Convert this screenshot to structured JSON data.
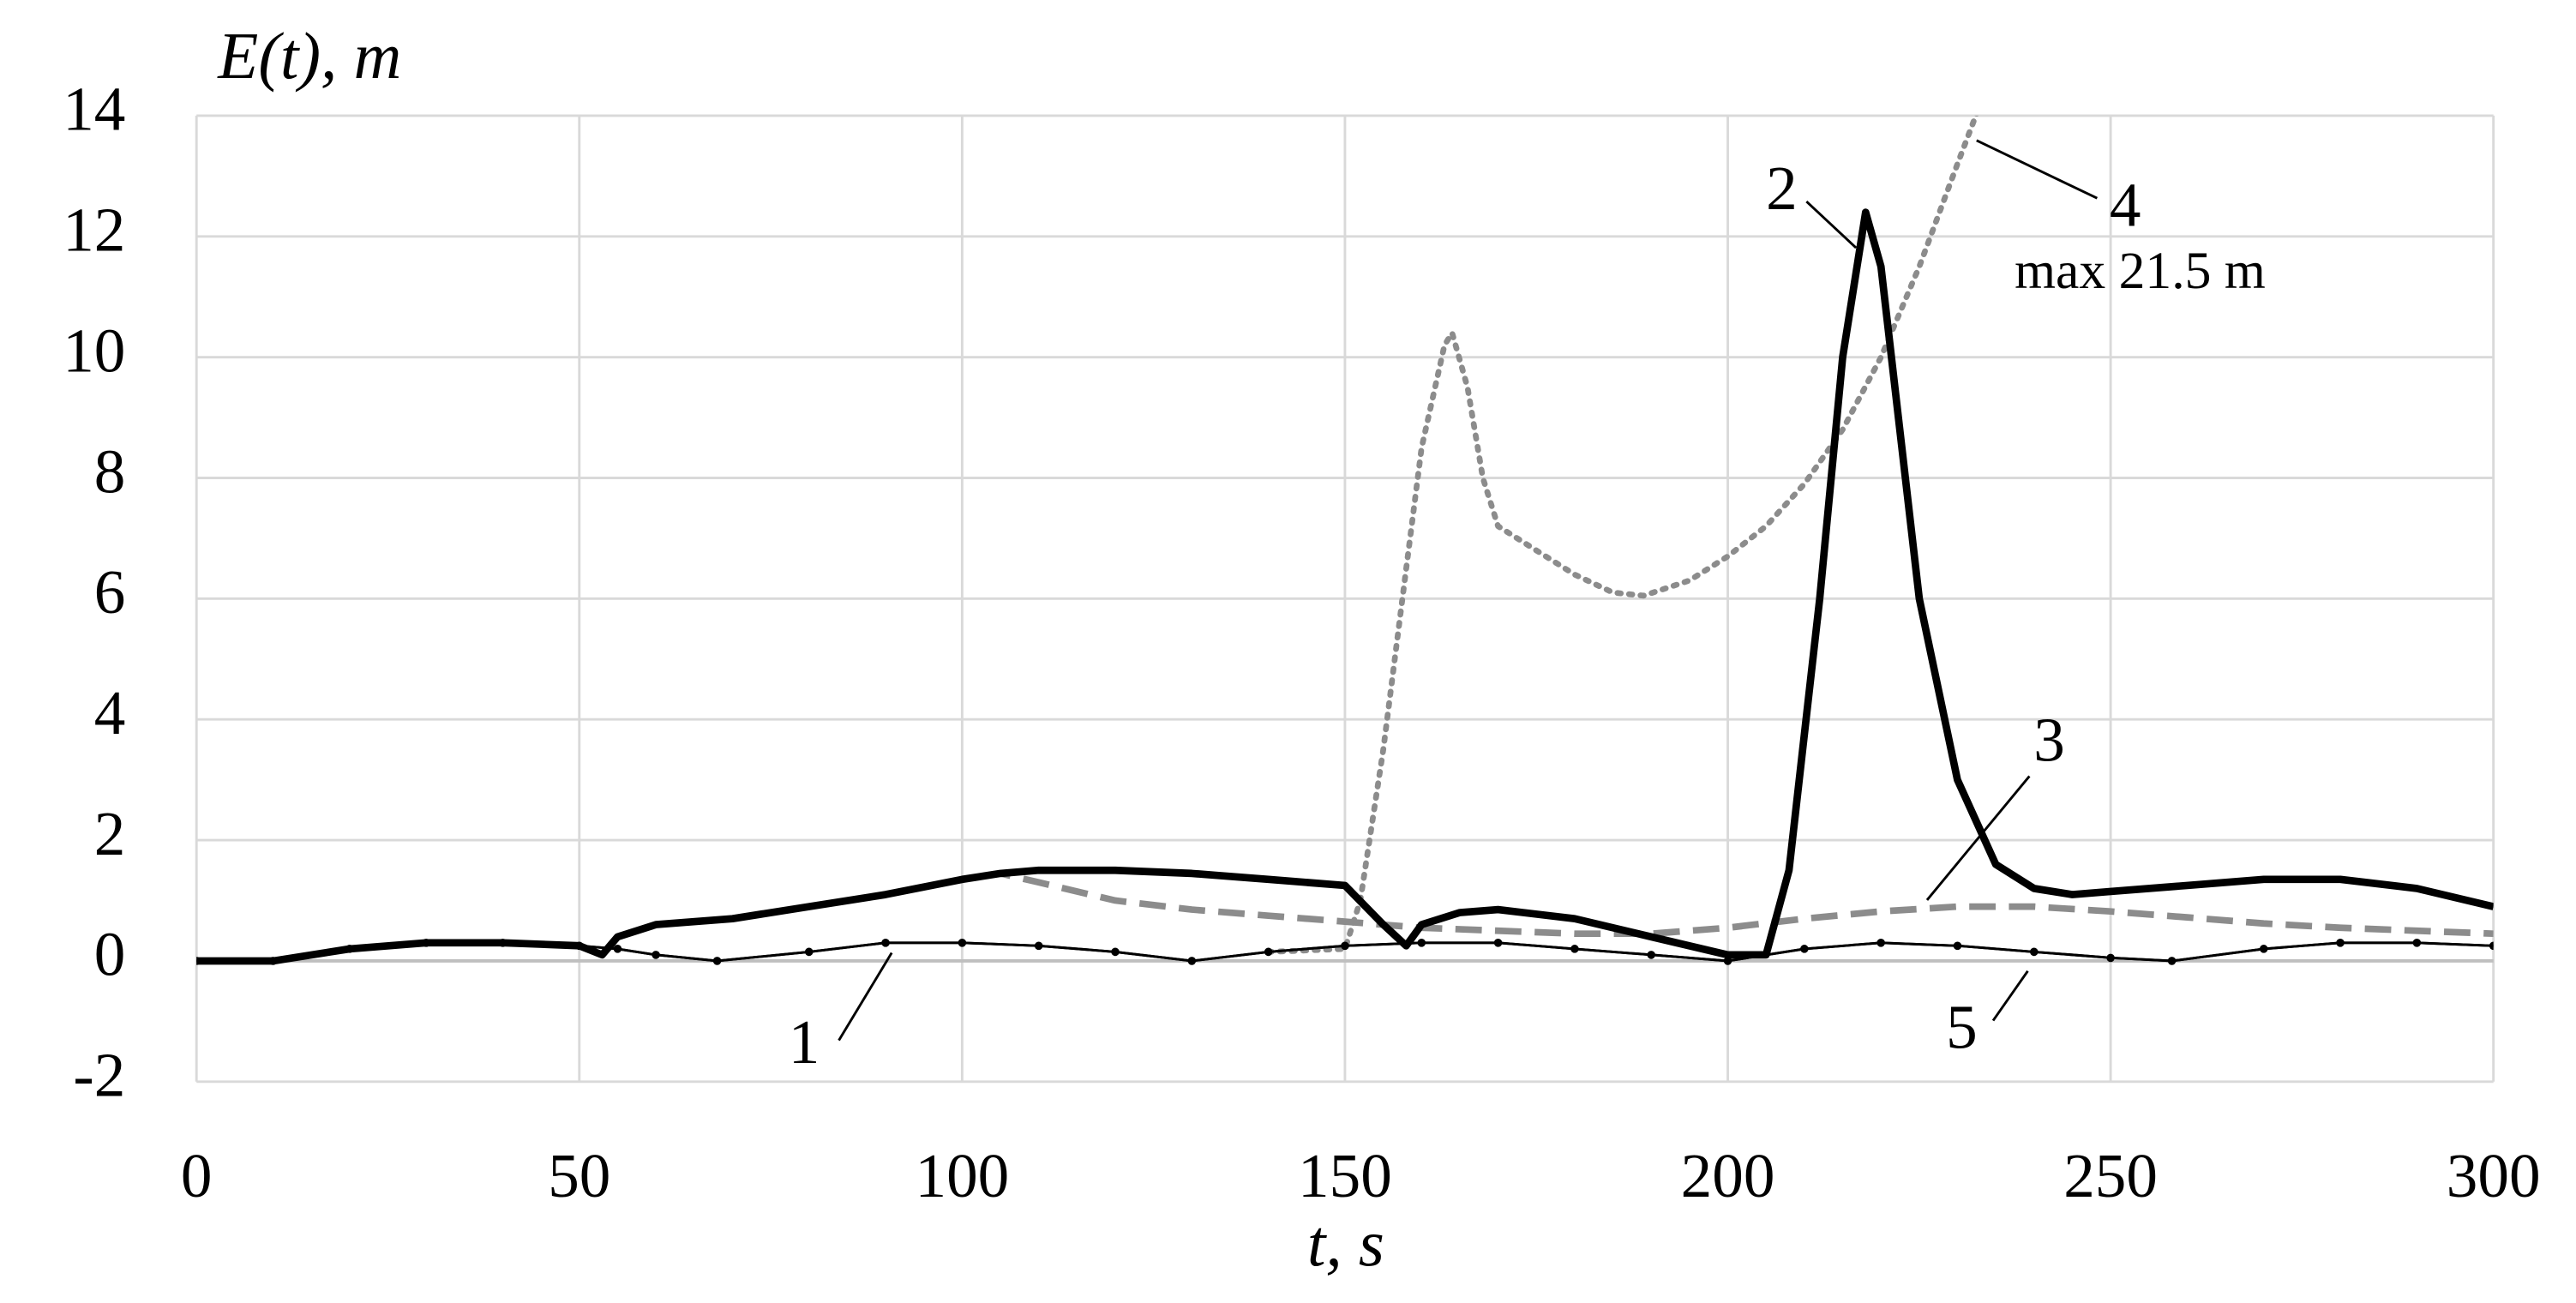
{
  "chart_data": {
    "type": "line",
    "y_label": "E(t), m",
    "x_label": "t,  s",
    "annotation": "max 21.5 m",
    "xlim": [
      0,
      300
    ],
    "xticks": [
      0,
      50,
      100,
      150,
      200,
      250,
      300
    ],
    "ylim": [
      -2,
      14
    ],
    "yticks": [
      -2,
      0,
      2,
      4,
      6,
      8,
      10,
      12,
      14
    ],
    "grid": true,
    "series": [
      {
        "name": "1",
        "color": "#000000",
        "style": "thin",
        "x": [
          0,
          10,
          20,
          30,
          40,
          50,
          55,
          60,
          68,
          80,
          90,
          100,
          110,
          120,
          130,
          140,
          150,
          160,
          170,
          180,
          190,
          200,
          210,
          220,
          230,
          240,
          250,
          258,
          270,
          280,
          290,
          300
        ],
        "values": [
          0,
          0,
          0.2,
          0.3,
          0.3,
          0.25,
          0.2,
          0.1,
          0,
          0.15,
          0.3,
          0.3,
          0.25,
          0.15,
          0,
          0.15,
          0.25,
          0.3,
          0.3,
          0.2,
          0.1,
          0,
          0.2,
          0.3,
          0.25,
          0.15,
          0.05,
          0,
          0.2,
          0.3,
          0.3,
          0.25
        ]
      },
      {
        "name": "2",
        "color": "#000000",
        "style": "thick",
        "x": [
          0,
          10,
          20,
          30,
          40,
          50,
          53,
          55,
          60,
          70,
          80,
          90,
          100,
          105,
          110,
          120,
          130,
          140,
          150,
          155,
          158,
          160,
          165,
          170,
          180,
          190,
          200,
          205,
          208,
          212,
          215,
          218,
          220,
          225,
          230,
          235,
          240,
          245,
          250,
          260,
          270,
          280,
          290,
          300
        ],
        "values": [
          0,
          0,
          0.2,
          0.3,
          0.3,
          0.25,
          0.1,
          0.4,
          0.6,
          0.7,
          0.9,
          1.1,
          1.35,
          1.45,
          1.5,
          1.5,
          1.45,
          1.35,
          1.25,
          0.6,
          0.25,
          0.6,
          0.8,
          0.85,
          0.7,
          0.4,
          0.1,
          0.1,
          1.5,
          6,
          10,
          12.4,
          11.5,
          6,
          3,
          1.6,
          1.2,
          1.1,
          1.15,
          1.25,
          1.35,
          1.35,
          1.2,
          0.9
        ]
      },
      {
        "name": "3",
        "color": "#8c8c8c",
        "style": "dashed",
        "x": [
          53,
          55,
          60,
          70,
          80,
          90,
          100,
          105,
          110,
          120,
          130,
          140,
          150,
          160,
          170,
          180,
          190,
          200,
          210,
          220,
          230,
          240,
          250,
          260,
          270,
          280,
          290,
          300
        ],
        "values": [
          0.1,
          0.4,
          0.6,
          0.7,
          0.9,
          1.1,
          1.35,
          1.45,
          1.3,
          1.0,
          0.85,
          0.75,
          0.65,
          0.55,
          0.5,
          0.45,
          0.45,
          0.55,
          0.7,
          0.82,
          0.9,
          0.9,
          0.82,
          0.72,
          0.62,
          0.55,
          0.5,
          0.45
        ]
      },
      {
        "name": "4",
        "color": "#8c8c8c",
        "style": "dotted",
        "x": [
          140,
          150,
          152,
          155,
          158,
          160,
          163,
          164,
          166,
          168,
          170,
          175,
          180,
          185,
          189,
          195,
          200,
          205,
          210,
          215,
          220,
          225,
          230,
          233
        ],
        "values": [
          0.15,
          0.2,
          1,
          3.5,
          6.5,
          8.5,
          10.2,
          10.4,
          9.5,
          8,
          7.2,
          6.8,
          6.4,
          6.1,
          6.05,
          6.3,
          6.7,
          7.2,
          7.9,
          8.8,
          10,
          11.5,
          13.2,
          14.2
        ]
      },
      {
        "name": "5",
        "color": "#000000",
        "style": "markers",
        "x": [
          0,
          10,
          20,
          30,
          40,
          50,
          55,
          60,
          68,
          80,
          90,
          100,
          110,
          120,
          130,
          140,
          150,
          160,
          170,
          180,
          190,
          200,
          210,
          220,
          230,
          240,
          250,
          258,
          270,
          280,
          290,
          300
        ],
        "values": [
          0,
          0,
          0.2,
          0.3,
          0.3,
          0.25,
          0.2,
          0.1,
          0,
          0.15,
          0.3,
          0.3,
          0.25,
          0.15,
          0,
          0.15,
          0.25,
          0.3,
          0.3,
          0.2,
          0.1,
          0,
          0.2,
          0.3,
          0.25,
          0.15,
          0.05,
          0,
          0.2,
          0.3,
          0.3,
          0.25
        ]
      }
    ]
  }
}
